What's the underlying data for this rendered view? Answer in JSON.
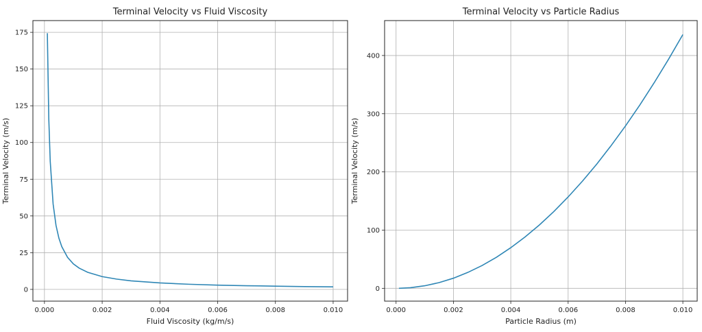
{
  "colors": {
    "line": "#2e86b5",
    "grid": "#b0b0b0",
    "axis": "#222222",
    "background": "#ffffff"
  },
  "chart_data": [
    {
      "type": "line",
      "title": "Terminal Velocity vs Fluid Viscosity",
      "xlabel": "Fluid Viscosity (kg/m/s)",
      "ylabel": "Terminal Velocity (m/s)",
      "xlim": [
        -0.0004,
        0.0105
      ],
      "ylim": [
        -8,
        183
      ],
      "grid": true,
      "xticks": [
        0.0,
        0.002,
        0.004,
        0.006,
        0.008,
        0.01
      ],
      "xtick_labels": [
        "0.000",
        "0.002",
        "0.004",
        "0.006",
        "0.008",
        "0.010"
      ],
      "yticks": [
        0,
        25,
        50,
        75,
        100,
        125,
        150,
        175
      ],
      "ytick_labels": [
        "0",
        "25",
        "50",
        "75",
        "100",
        "125",
        "150",
        "175"
      ],
      "series": [
        {
          "x": [
            0.0001,
            0.00015,
            0.0002,
            0.0003,
            0.0004,
            0.0005,
            0.0006,
            0.0008,
            0.001,
            0.0012,
            0.0015,
            0.002,
            0.0025,
            0.003,
            0.004,
            0.005,
            0.006,
            0.007,
            0.008,
            0.009,
            0.01
          ],
          "y": [
            174.4,
            116.3,
            87.2,
            58.1,
            43.6,
            34.9,
            29.1,
            21.8,
            17.4,
            14.5,
            11.6,
            8.7,
            7.0,
            5.8,
            4.4,
            3.5,
            2.9,
            2.5,
            2.2,
            1.9,
            1.7
          ]
        }
      ]
    },
    {
      "type": "line",
      "title": "Terminal Velocity vs Particle Radius",
      "xlabel": "Particle Radius (m)",
      "ylabel": "Terminal Velocity (m/s)",
      "xlim": [
        -0.0004,
        0.0105
      ],
      "ylim": [
        -22,
        460
      ],
      "grid": true,
      "xticks": [
        0.0,
        0.002,
        0.004,
        0.006,
        0.008,
        0.01
      ],
      "xtick_labels": [
        "0.000",
        "0.002",
        "0.004",
        "0.006",
        "0.008",
        "0.010"
      ],
      "yticks": [
        0,
        100,
        200,
        300,
        400
      ],
      "ytick_labels": [
        "0",
        "100",
        "200",
        "300",
        "400"
      ],
      "series": [
        {
          "x": [
            0.0001,
            0.0005,
            0.001,
            0.0015,
            0.002,
            0.0025,
            0.003,
            0.0035,
            0.004,
            0.0045,
            0.005,
            0.0055,
            0.006,
            0.0065,
            0.007,
            0.0075,
            0.008,
            0.0085,
            0.009,
            0.0095,
            0.01
          ],
          "y": [
            0.04,
            1.1,
            4.4,
            9.8,
            17.4,
            27.3,
            39.2,
            53.4,
            69.8,
            88.3,
            109.0,
            131.9,
            157.0,
            184.2,
            213.6,
            245.3,
            279.0,
            315.0,
            353.2,
            393.5,
            436.0
          ]
        }
      ]
    }
  ]
}
